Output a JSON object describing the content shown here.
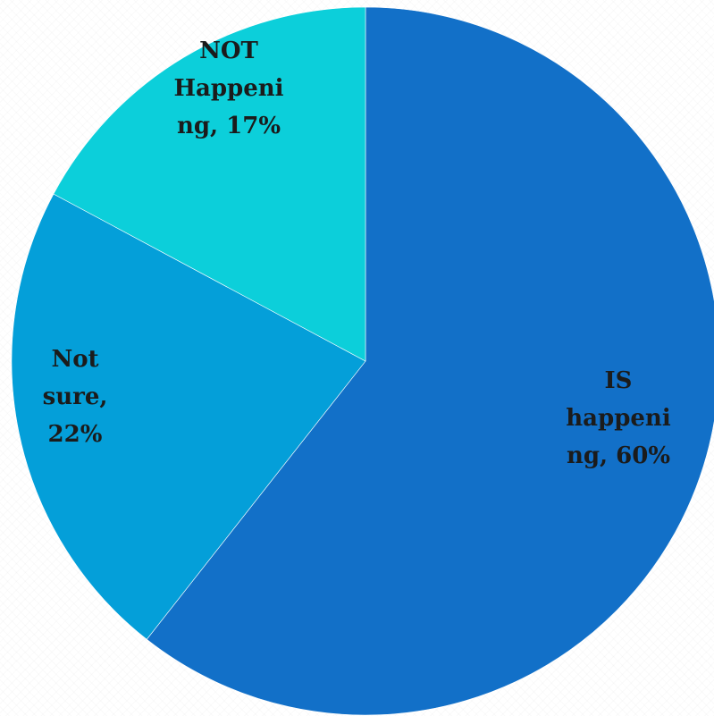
{
  "chart_data": {
    "type": "pie",
    "title": "",
    "slices": [
      {
        "label": "IS happening",
        "value": 60,
        "color": "#1270c8",
        "label_lines": [
          "IS",
          "happeni",
          "ng, 60%"
        ]
      },
      {
        "label": "Not sure",
        "value": 22,
        "color": "#049fd9",
        "label_lines": [
          "Not",
          "sure,",
          "22%"
        ]
      },
      {
        "label": "NOT Happening",
        "value": 17,
        "color": "#0ccfda",
        "label_lines": [
          "NOT",
          "Happeni",
          "ng, 17%"
        ]
      }
    ],
    "start_angle_deg": 0,
    "direction": "clockwise",
    "legend": "none"
  }
}
